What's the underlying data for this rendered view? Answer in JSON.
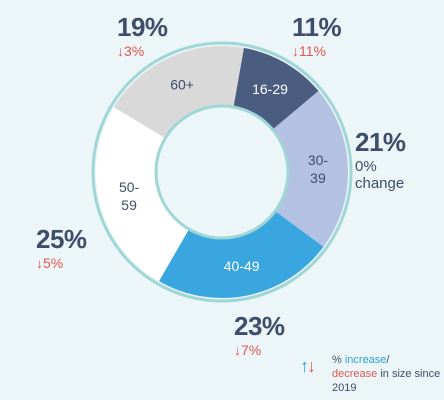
{
  "chart_data": {
    "type": "donut",
    "slices": [
      {
        "label": "16-29",
        "value": 11,
        "change": "↓11%",
        "color": "#4a5c80",
        "text_color": "#ffffff"
      },
      {
        "label": "30-39",
        "value": 21,
        "change": "0% change",
        "color": "#b3c1e3",
        "text_color": "#3e4d6b"
      },
      {
        "label": "40-49",
        "value": 23,
        "change": "↓7%",
        "color": "#3aa6e0",
        "text_color": "#ffffff"
      },
      {
        "label": "50-59",
        "value": 25,
        "change": "↓5%",
        "color": "#ffffff",
        "text_color": "#3e4d6b"
      },
      {
        "label": "60+",
        "value": 19,
        "change": "↓3%",
        "color": "#d9d9d9",
        "text_color": "#3e4d6b"
      }
    ],
    "callouts": [
      {
        "pct": "11%",
        "change": "↓11%"
      },
      {
        "pct": "21%",
        "change_line1": "0%",
        "change_line2": "change"
      },
      {
        "pct": "23%",
        "change": "↓7%"
      },
      {
        "pct": "25%",
        "change": "↓5%"
      },
      {
        "pct": "19%",
        "change": "↓3%"
      }
    ],
    "ring_color": "#9fd6d6"
  },
  "legend": {
    "arrow_up": "↑",
    "arrow_down": "↓",
    "prefix": "% ",
    "increase": "increase",
    "slash": "/",
    "decrease": "decrease",
    "rest": " in size since 2019"
  }
}
